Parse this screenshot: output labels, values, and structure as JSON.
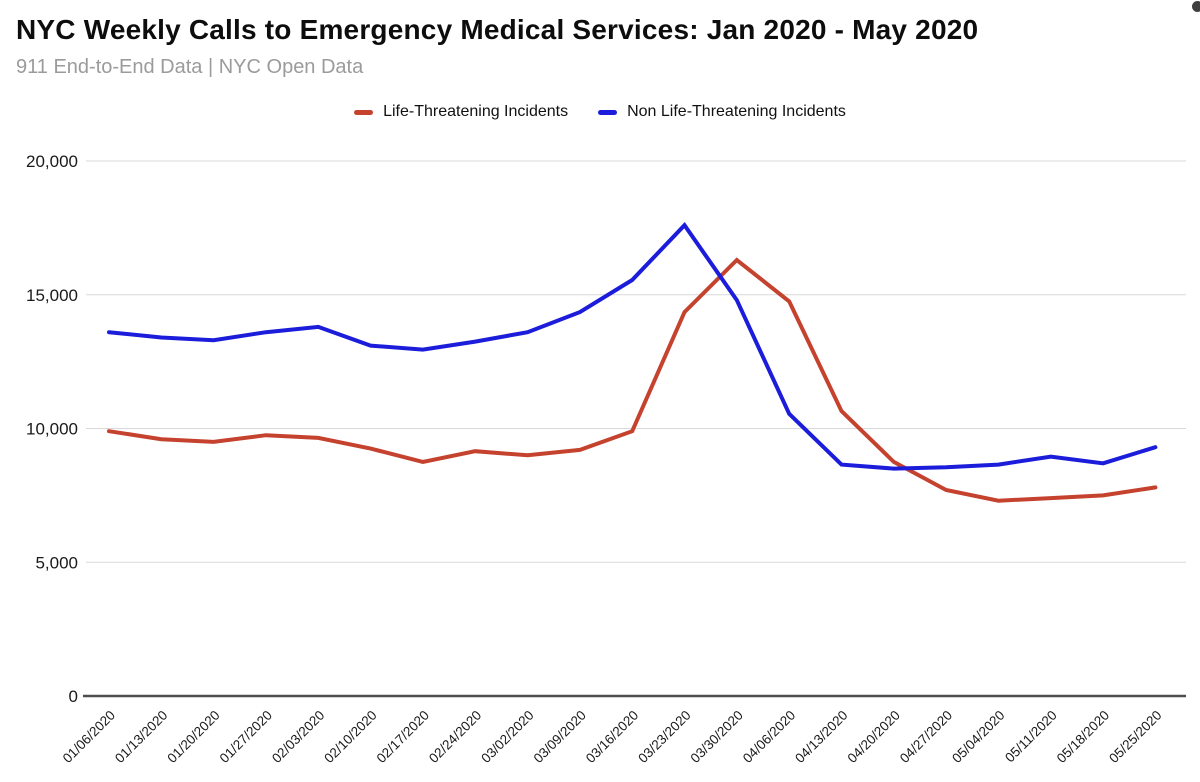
{
  "header": {
    "title": "NYC Weekly Calls to Emergency Medical Services: Jan 2020 - May 2020",
    "subtitle": "911 End-to-End Data | NYC Open Data"
  },
  "colors": {
    "title_text": "#0d0d0d",
    "subtitle_text": "#9b9b9b",
    "tick_label_text": "#1a1a1a",
    "gridline": "#d9d9d9",
    "zero_axis": "#4d4d4d",
    "life_threatening": "#c5422e",
    "non_life_threatening": "#1c1cdb"
  },
  "chart_data": {
    "type": "line",
    "title": "NYC Weekly Calls to Emergency Medical Services: Jan 2020 - May 2020",
    "subtitle": "911 End-to-End Data | NYC Open Data",
    "x": [
      "01/06/2020",
      "01/13/2020",
      "01/20/2020",
      "01/27/2020",
      "02/03/2020",
      "02/10/2020",
      "02/17/2020",
      "02/24/2020",
      "03/02/2020",
      "03/09/2020",
      "03/16/2020",
      "03/23/2020",
      "03/30/2020",
      "04/06/2020",
      "04/13/2020",
      "04/20/2020",
      "04/27/2020",
      "05/04/2020",
      "05/11/2020",
      "05/18/2020",
      "05/25/2020"
    ],
    "series": [
      {
        "name": "Life-Threatening Incidents",
        "color": "#c5422e",
        "values": [
          9900,
          9600,
          9500,
          9750,
          9650,
          9250,
          8750,
          9150,
          9000,
          9200,
          9900,
          14350,
          16300,
          14750,
          10650,
          8750,
          7700,
          7300,
          7400,
          7500,
          7800
        ]
      },
      {
        "name": "Non Life-Threatening Incidents",
        "color": "#1c1cdb",
        "values": [
          13600,
          13400,
          13300,
          13600,
          13800,
          13100,
          12950,
          13250,
          13600,
          14350,
          15550,
          17600,
          14800,
          10550,
          8650,
          8500,
          8550,
          8650,
          8950,
          8700,
          9300
        ]
      }
    ],
    "ylim": [
      0,
      20000
    ],
    "y_ticks": [
      0,
      5000,
      10000,
      15000,
      20000
    ],
    "y_tick_labels": [
      "0",
      "5,000",
      "10,000",
      "15,000",
      "20,000"
    ],
    "x_tick_rotation": -45,
    "grid": true,
    "legend_position": "top-center"
  }
}
